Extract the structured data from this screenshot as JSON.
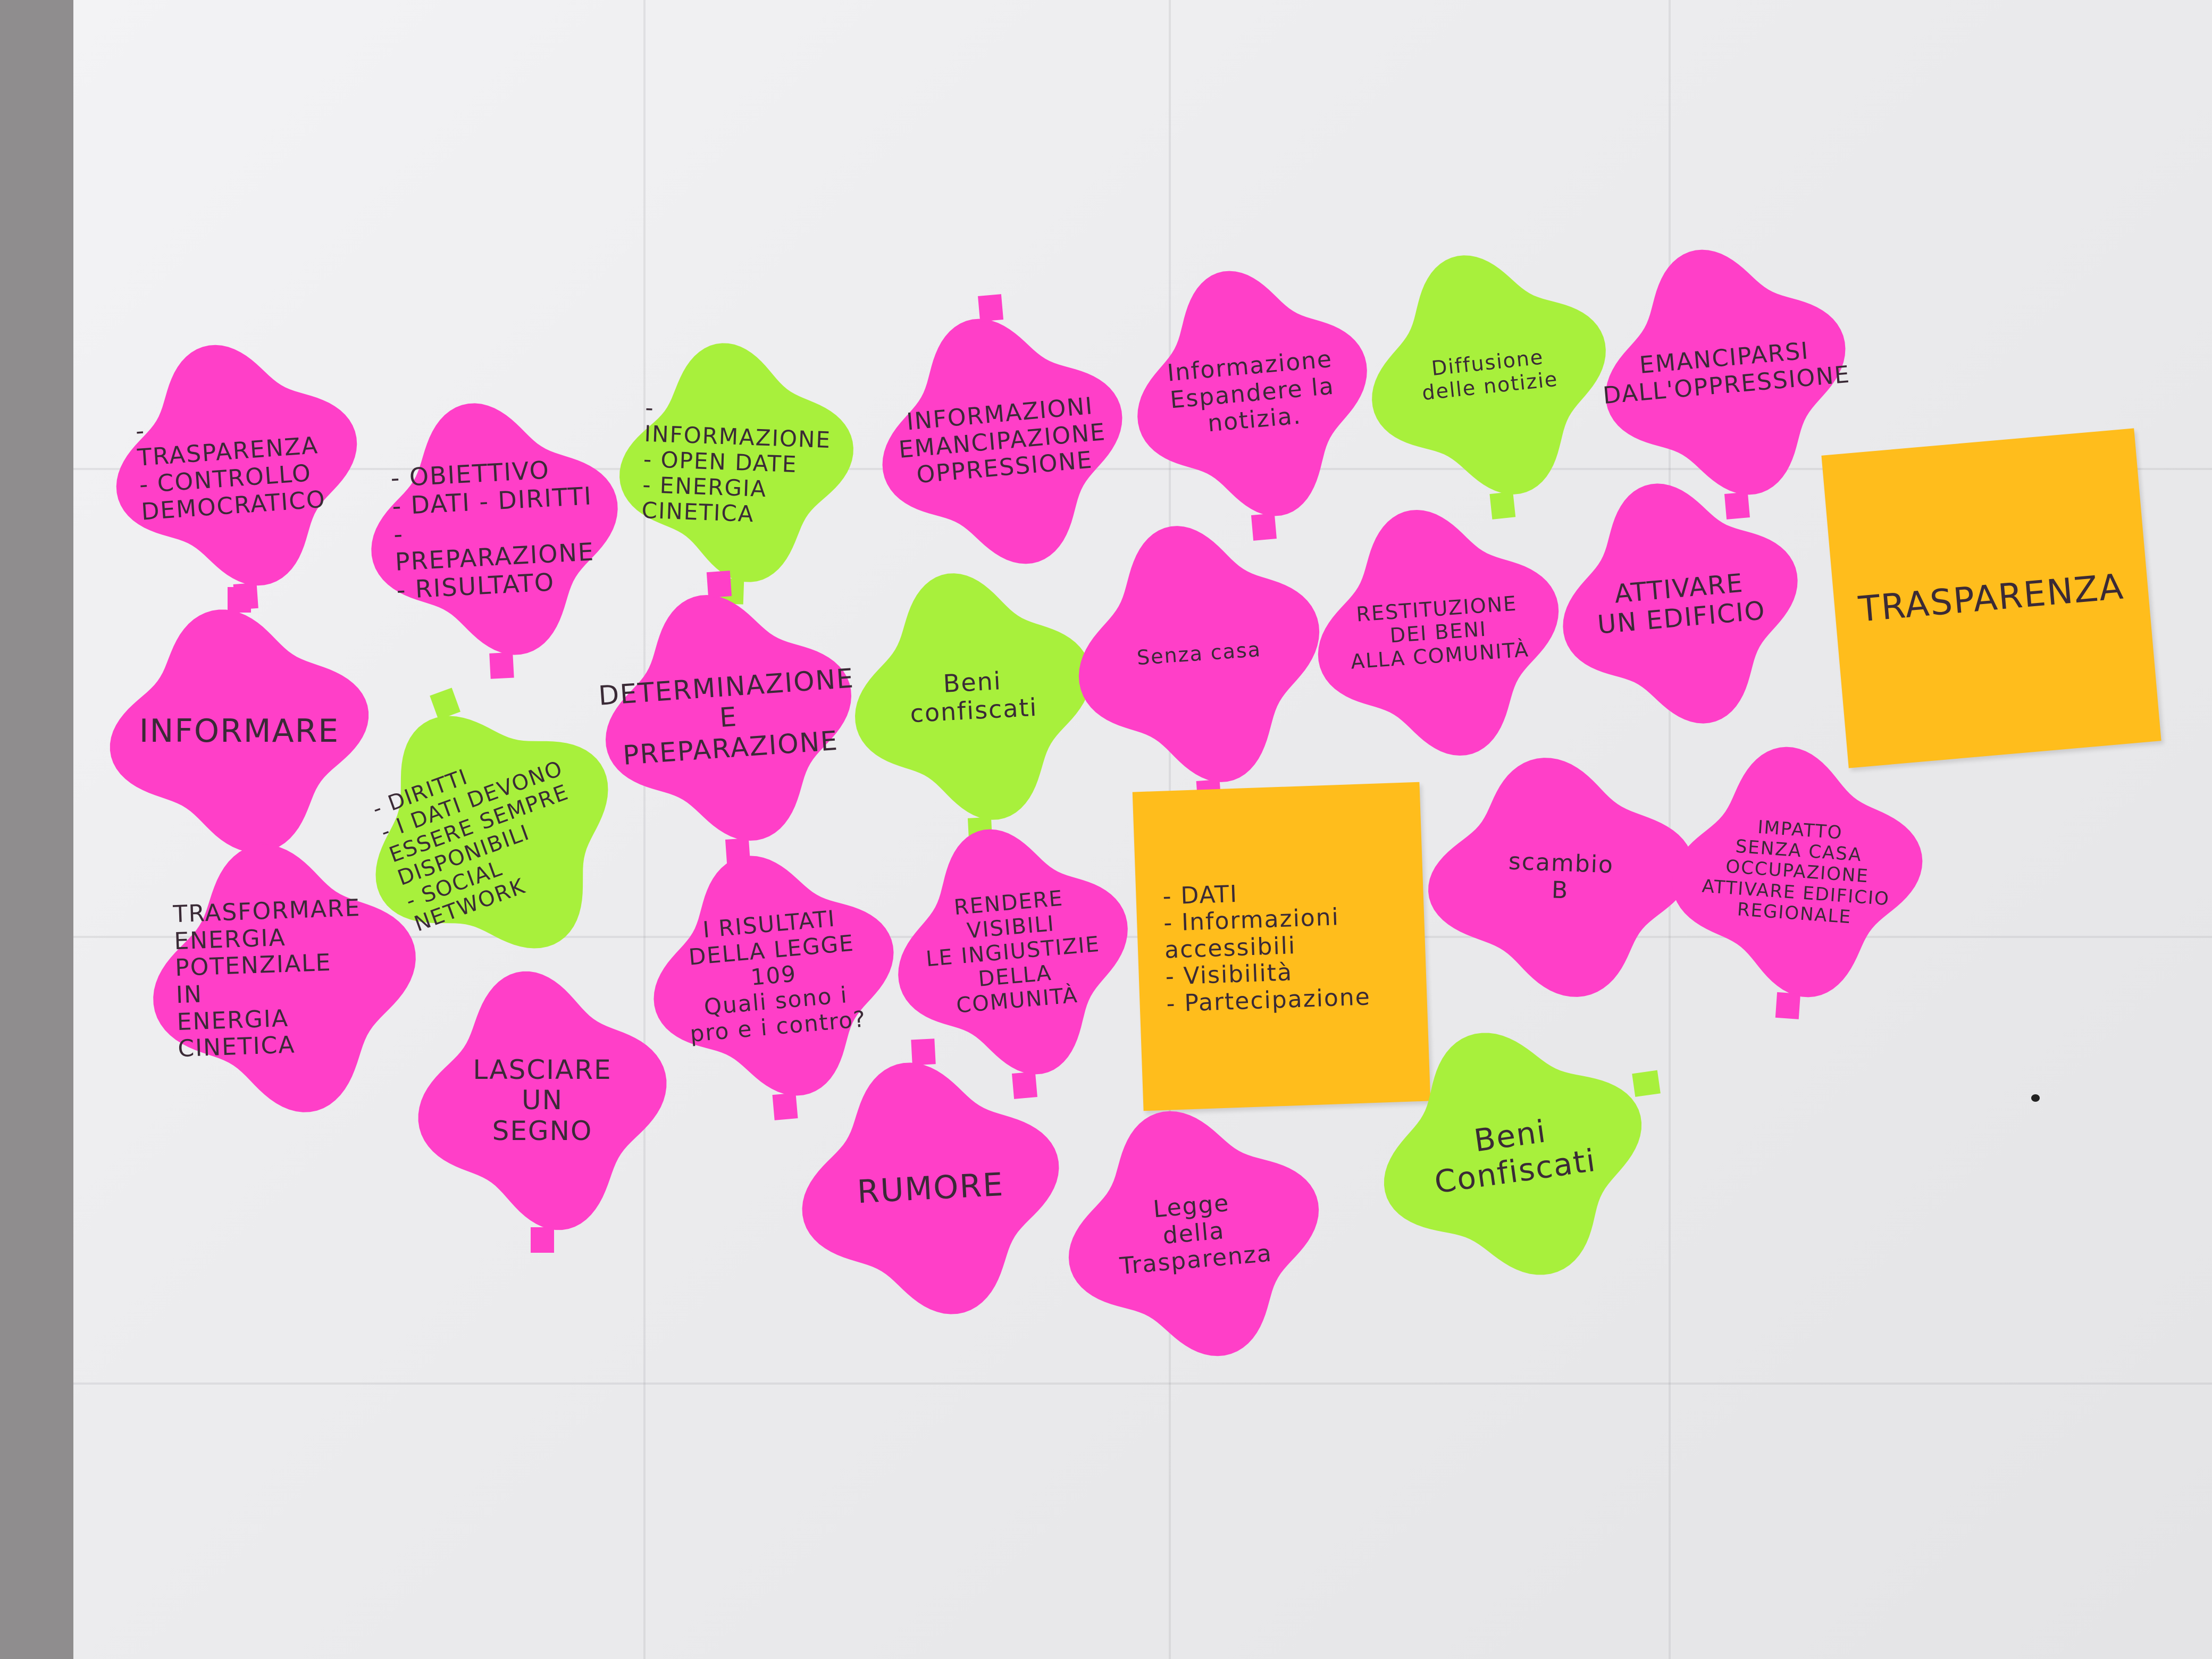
{
  "notes": [
    {
      "id": "n1",
      "color": "pink",
      "lines": [
        "- TRASPARENZA",
        "- CONTROLLO DEMOCRATICO"
      ]
    },
    {
      "id": "n2",
      "color": "pink",
      "lines": [
        "- OBIETTIVO",
        "- DATI - DIRITTI",
        "- PREPARAZIONE",
        "- RISULTATO"
      ]
    },
    {
      "id": "n3",
      "color": "green",
      "lines": [
        "- INFORMAZIONE",
        "- OPEN DATE",
        "- ENERGIA CINETICA"
      ]
    },
    {
      "id": "n4",
      "color": "pink",
      "lines": [
        "INFORMAZIONI",
        "EMANCIPAZIONE",
        "OPPRESSIONE"
      ]
    },
    {
      "id": "n5",
      "color": "pink",
      "lines": [
        "Informazione",
        "Espandere la",
        "notizia."
      ]
    },
    {
      "id": "n6",
      "color": "green",
      "lines": [
        "Diffusione",
        "delle notizie"
      ]
    },
    {
      "id": "n7",
      "color": "pink",
      "lines": [
        "EMANCIPARSI",
        "DALL'OPPRESSIONE"
      ]
    },
    {
      "id": "n8",
      "color": "yellow",
      "lines": [
        "TRASPARENZA"
      ]
    },
    {
      "id": "n9",
      "color": "pink",
      "lines": [
        "INFORMARE"
      ]
    },
    {
      "id": "n10",
      "color": "pink",
      "lines": [
        "DETERMINAZIONE",
        "E",
        "PREPARAZIONE"
      ]
    },
    {
      "id": "n11",
      "color": "green",
      "lines": [
        "Beni confiscati"
      ]
    },
    {
      "id": "n12",
      "color": "pink",
      "lines": [
        "Senza casa"
      ]
    },
    {
      "id": "n13",
      "color": "pink",
      "lines": [
        "RESTITUZIONE",
        "DEI BENI",
        "ALLA COMUNITÀ"
      ]
    },
    {
      "id": "n14",
      "color": "pink",
      "lines": [
        "ATTIVARE",
        "UN EDIFICIO"
      ]
    },
    {
      "id": "n15",
      "color": "green",
      "lines": [
        "- DIRITTI",
        "- I DATI DEVONO",
        "ESSERE SEMPRE",
        "DISPONIBILI",
        "- SOCIAL NETWORK"
      ]
    },
    {
      "id": "n16",
      "color": "yellow",
      "lines": [
        "- DATI",
        "- Informazioni",
        "accessibili",
        "- Visibilità",
        "- Partecipazione"
      ]
    },
    {
      "id": "n17",
      "color": "pink",
      "lines": [
        "scambio",
        "B"
      ]
    },
    {
      "id": "n18",
      "color": "pink",
      "lines": [
        "IMPATTO",
        "SENZA CASA",
        "OCCUPAZIONE",
        "ATTIVARE EDIFICIO",
        "REGIONALE"
      ]
    },
    {
      "id": "n19",
      "color": "pink",
      "lines": [
        "TRASFORMARE",
        "ENERGIA",
        "POTENZIALE",
        "IN",
        "ENERGIA",
        "CINETICA"
      ]
    },
    {
      "id": "n20",
      "color": "pink",
      "lines": [
        "I RISULTATI",
        "DELLA LEGGE 109",
        "Quali sono i",
        "pro e i contro?"
      ]
    },
    {
      "id": "n21",
      "color": "pink",
      "lines": [
        "RENDERE VISIBILI",
        "LE INGIUSTIZIE",
        "DELLA COMUNITÀ"
      ]
    },
    {
      "id": "n22",
      "color": "pink",
      "lines": [
        "LASCIARE",
        "UN",
        "SEGNO"
      ]
    },
    {
      "id": "n23",
      "color": "pink",
      "lines": [
        "RUMORE"
      ]
    },
    {
      "id": "n24",
      "color": "pink",
      "lines": [
        "Legge",
        "della",
        "Trasparenza"
      ]
    },
    {
      "id": "n25",
      "color": "green",
      "lines": [
        "Beni",
        "Confiscati"
      ]
    }
  ]
}
